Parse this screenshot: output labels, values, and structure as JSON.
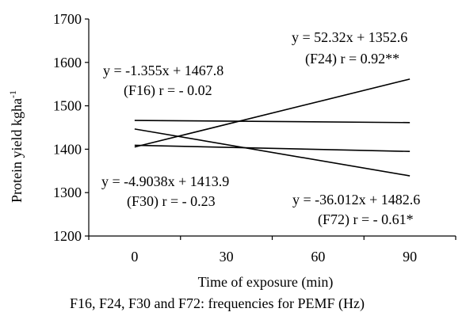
{
  "chart_data": {
    "type": "line",
    "xlabel": "Time of exposure (min)",
    "ylabel": "Protein yield kgha",
    "ylabel_sup": "-1",
    "caption": "F16, F24, F30 and F72: frequencies for PEMF (Hz)",
    "xlim": [
      -15,
      105
    ],
    "ylim": [
      1200,
      1700
    ],
    "x_ticks": [
      0,
      30,
      60,
      90
    ],
    "y_ticks": [
      1200,
      1300,
      1400,
      1500,
      1600,
      1700
    ],
    "grid": false,
    "series": [
      {
        "id": "f16",
        "x": [
          0,
          90
        ],
        "y": [
          1466.4,
          1461.3
        ]
      },
      {
        "id": "f24",
        "x": [
          0,
          90
        ],
        "y": [
          1405.0,
          1561.6
        ]
      },
      {
        "id": "f30",
        "x": [
          0,
          90
        ],
        "y": [
          1409.0,
          1394.9
        ]
      },
      {
        "id": "f72",
        "x": [
          0,
          90
        ],
        "y": [
          1446.6,
          1338.6
        ]
      }
    ],
    "annotations": [
      {
        "id": "f16-eq",
        "text": "y = -1.355x + 1467.8"
      },
      {
        "id": "f16-r",
        "text": "(F16) r = - 0.02"
      },
      {
        "id": "f24-eq",
        "text": "y = 52.32x + 1352.6"
      },
      {
        "id": "f24-r",
        "text": "(F24) r = 0.92**"
      },
      {
        "id": "f30-eq",
        "text": "y = -4.9038x + 1413.9"
      },
      {
        "id": "f30-r",
        "text": "(F30) r = - 0.23"
      },
      {
        "id": "f72-eq",
        "text": "y = -36.012x + 1482.6"
      },
      {
        "id": "f72-r",
        "text": "(F72) r = - 0.61*"
      }
    ]
  }
}
